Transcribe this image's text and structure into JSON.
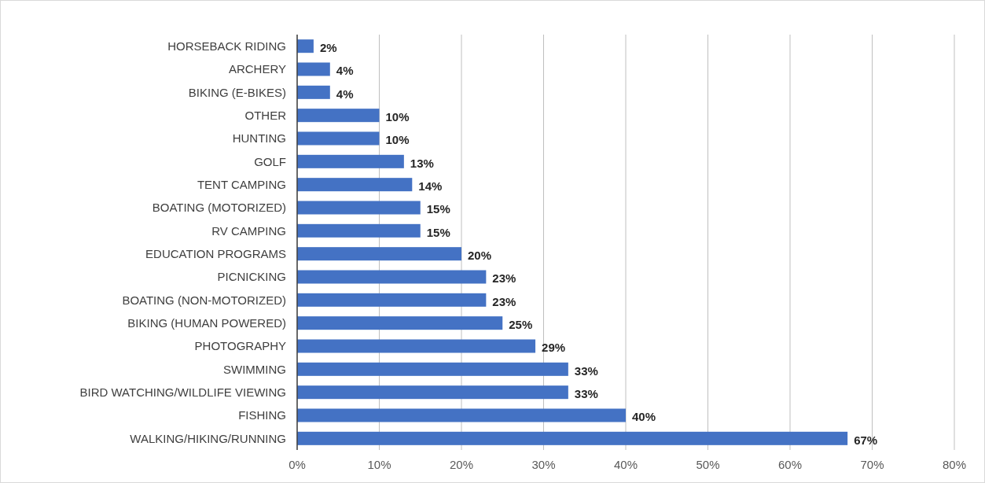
{
  "chart_data": {
    "type": "bar",
    "orientation": "horizontal",
    "categories": [
      "HORSEBACK RIDING",
      "ARCHERY",
      "BIKING (E-BIKES)",
      "OTHER",
      "HUNTING",
      "GOLF",
      "TENT CAMPING",
      "BOATING (MOTORIZED)",
      "RV CAMPING",
      "EDUCATION PROGRAMS",
      "PICNICKING",
      "BOATING (NON-MOTORIZED)",
      "BIKING (HUMAN POWERED)",
      "PHOTOGRAPHY",
      "SWIMMING",
      "BIRD WATCHING/WILDLIFE VIEWING",
      "FISHING",
      "WALKING/HIKING/RUNNING"
    ],
    "values": [
      2,
      4,
      4,
      10,
      10,
      13,
      14,
      15,
      15,
      20,
      23,
      23,
      25,
      29,
      33,
      33,
      40,
      67
    ],
    "value_labels": [
      "2%",
      "4%",
      "4%",
      "10%",
      "10%",
      "13%",
      "14%",
      "15%",
      "15%",
      "20%",
      "23%",
      "23%",
      "25%",
      "29%",
      "33%",
      "33%",
      "40%",
      "67%"
    ],
    "color": "#4472c4",
    "xlim": [
      0,
      80
    ],
    "xticks": [
      {
        "value": 0,
        "label": "0%"
      },
      {
        "value": 10,
        "label": "10%"
      },
      {
        "value": 20,
        "label": "20%"
      },
      {
        "value": 30,
        "label": "30%"
      },
      {
        "value": 40,
        "label": "40%"
      },
      {
        "value": 50,
        "label": "50%"
      },
      {
        "value": 60,
        "label": "60%"
      },
      {
        "value": 70,
        "label": "70%"
      },
      {
        "value": 80,
        "label": "80%"
      }
    ],
    "grid": "x"
  }
}
